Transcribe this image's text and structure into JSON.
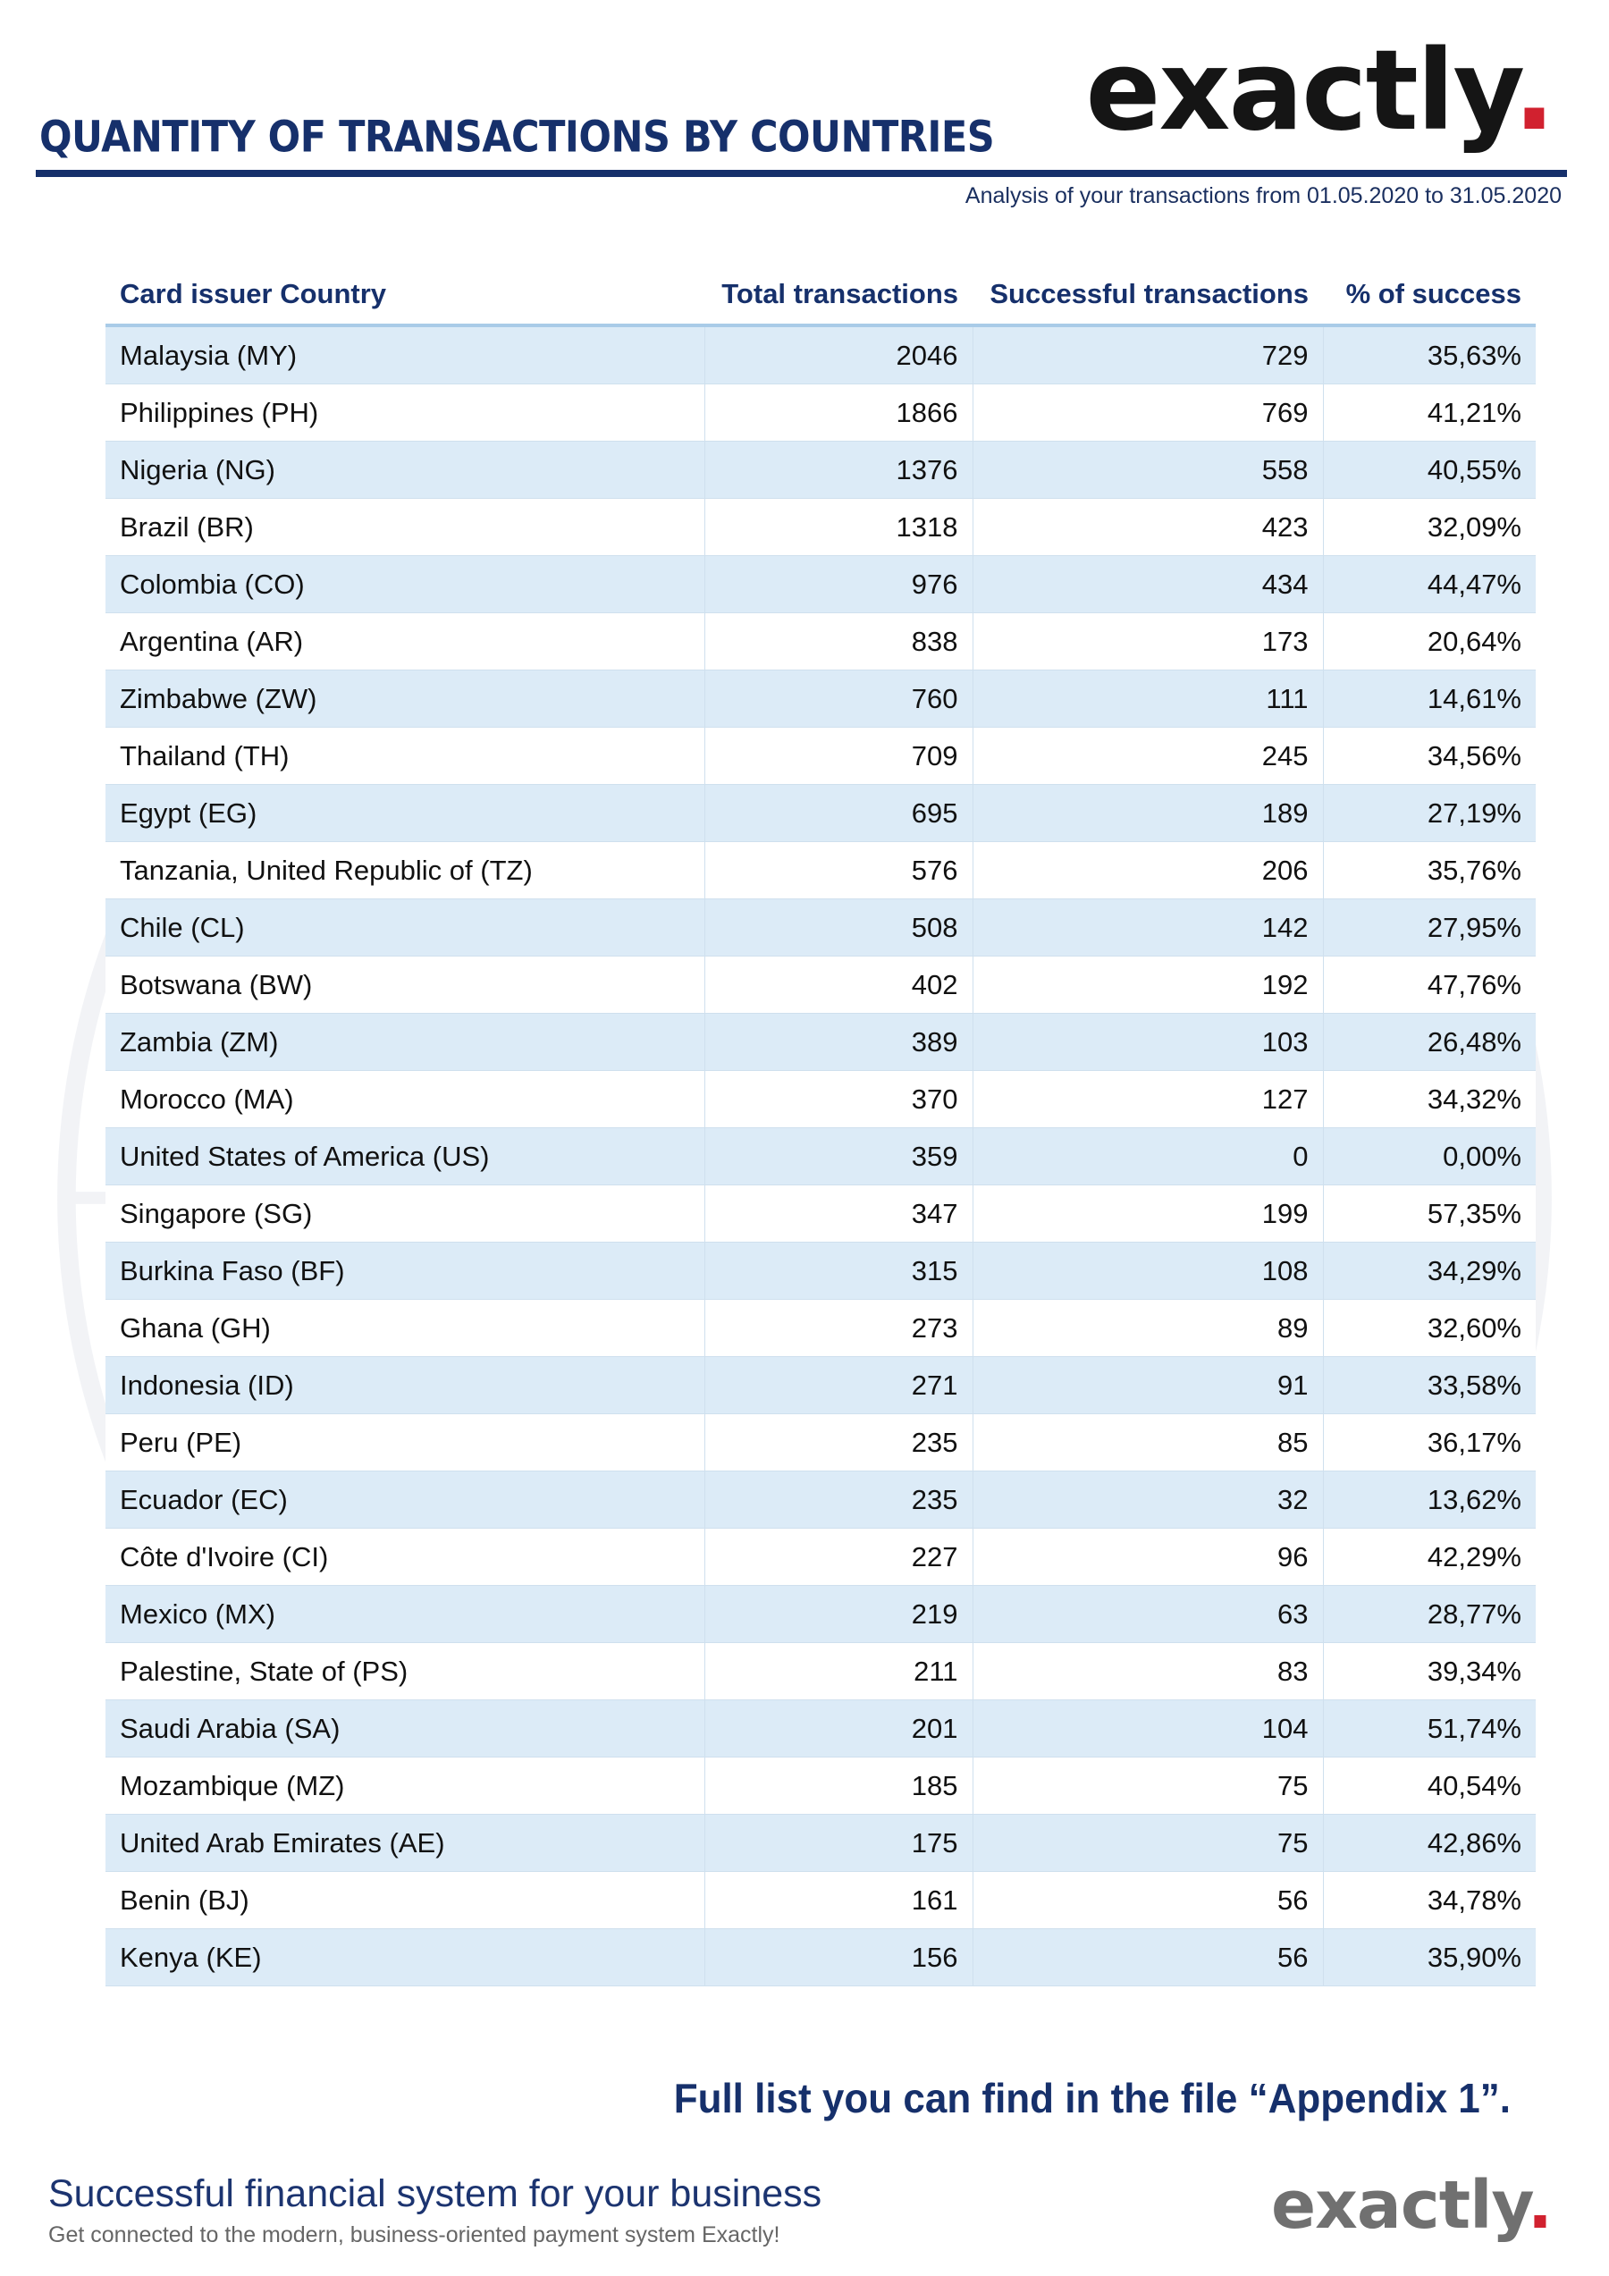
{
  "header": {
    "title": "QUANTITY OF TRANSACTIONS BY COUNTRIES",
    "logo_text": "exactly",
    "logo_dot": ".",
    "subtitle": "Analysis of your transactions from 01.05.2020 to 31.05.2020"
  },
  "table": {
    "columns": [
      "Card issuer Country",
      "Total transactions",
      "Successful transactions",
      "% of success"
    ],
    "rows": [
      [
        "Malaysia (MY)",
        "2046",
        "729",
        "35,63%"
      ],
      [
        "Philippines (PH)",
        "1866",
        "769",
        "41,21%"
      ],
      [
        "Nigeria (NG)",
        "1376",
        "558",
        "40,55%"
      ],
      [
        "Brazil (BR)",
        "1318",
        "423",
        "32,09%"
      ],
      [
        "Colombia (CO)",
        "976",
        "434",
        "44,47%"
      ],
      [
        "Argentina (AR)",
        "838",
        "173",
        "20,64%"
      ],
      [
        "Zimbabwe (ZW)",
        "760",
        "111",
        "14,61%"
      ],
      [
        "Thailand (TH)",
        "709",
        "245",
        "34,56%"
      ],
      [
        "Egypt (EG)",
        "695",
        "189",
        "27,19%"
      ],
      [
        "Tanzania, United Republic of (TZ)",
        "576",
        "206",
        "35,76%"
      ],
      [
        "Chile (CL)",
        "508",
        "142",
        "27,95%"
      ],
      [
        "Botswana (BW)",
        "402",
        "192",
        "47,76%"
      ],
      [
        "Zambia (ZM)",
        "389",
        "103",
        "26,48%"
      ],
      [
        "Morocco (MA)",
        "370",
        "127",
        "34,32%"
      ],
      [
        "United States of America (US)",
        "359",
        "0",
        "0,00%"
      ],
      [
        "Singapore (SG)",
        "347",
        "199",
        "57,35%"
      ],
      [
        "Burkina Faso (BF)",
        "315",
        "108",
        "34,29%"
      ],
      [
        "Ghana (GH)",
        "273",
        "89",
        "32,60%"
      ],
      [
        "Indonesia (ID)",
        "271",
        "91",
        "33,58%"
      ],
      [
        "Peru (PE)",
        "235",
        "85",
        "36,17%"
      ],
      [
        "Ecuador (EC)",
        "235",
        "32",
        "13,62%"
      ],
      [
        "Côte d'Ivoire (CI)",
        "227",
        "96",
        "42,29%"
      ],
      [
        "Mexico (MX)",
        "219",
        "63",
        "28,77%"
      ],
      [
        "Palestine, State of (PS)",
        "211",
        "83",
        "39,34%"
      ],
      [
        "Saudi Arabia (SA)",
        "201",
        "104",
        "51,74%"
      ],
      [
        "Mozambique (MZ)",
        "185",
        "75",
        "40,54%"
      ],
      [
        "United Arab Emirates (AE)",
        "175",
        "75",
        "42,86%"
      ],
      [
        "Benin (BJ)",
        "161",
        "56",
        "34,78%"
      ],
      [
        "Kenya (KE)",
        "156",
        "56",
        "35,90%"
      ]
    ]
  },
  "note": "Full list you can find in the file “Appendix 1”.",
  "footer": {
    "tagline": "Successful financial system for your business",
    "subtext": "Get connected to the modern, business-oriented payment system Exactly!",
    "logo_text": "exactly",
    "logo_dot": "."
  },
  "colors": {
    "navy": "#16306b",
    "logo_red": "#d1212f",
    "row_stripe": "#dcebf7"
  }
}
